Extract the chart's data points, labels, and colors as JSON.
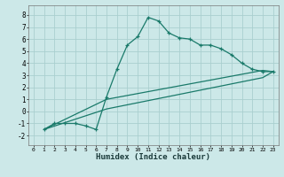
{
  "xlabel": "Humidex (Indice chaleur)",
  "xlim": [
    -0.5,
    23.5
  ],
  "ylim": [
    -2.8,
    8.8
  ],
  "xticks": [
    0,
    1,
    2,
    3,
    4,
    5,
    6,
    7,
    8,
    9,
    10,
    11,
    12,
    13,
    14,
    15,
    16,
    17,
    18,
    19,
    20,
    21,
    22,
    23
  ],
  "yticks": [
    -2,
    -1,
    0,
    1,
    2,
    3,
    4,
    5,
    6,
    7,
    8
  ],
  "background_color": "#cce8e8",
  "grid_color": "#aacfcf",
  "line_color": "#1a7a6a",
  "series0_x": [
    1,
    2,
    3,
    4,
    5,
    6,
    7,
    8,
    9,
    10,
    11,
    12,
    13,
    14,
    15,
    16,
    17,
    18,
    19,
    20,
    21,
    22,
    23
  ],
  "series0_y": [
    -1.5,
    -1.0,
    -1.0,
    -1.0,
    -1.2,
    -1.5,
    1.2,
    3.5,
    5.5,
    6.2,
    7.8,
    7.5,
    6.5,
    6.1,
    6.0,
    5.5,
    5.5,
    5.2,
    4.7,
    4.0,
    3.5,
    3.3,
    3.3
  ],
  "series1_x": [
    1,
    7,
    22,
    23
  ],
  "series1_y": [
    -1.5,
    1.0,
    3.4,
    3.3
  ],
  "series2_x": [
    1,
    7,
    22,
    23
  ],
  "series2_y": [
    -1.5,
    0.2,
    2.8,
    3.3
  ],
  "xlabel_fontsize": 6.5,
  "xlabel_bold": true,
  "tick_fontsize_x": 4.5,
  "tick_fontsize_y": 5.5
}
